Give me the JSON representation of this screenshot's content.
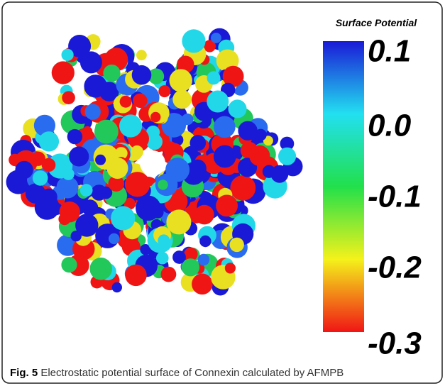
{
  "figure": {
    "colorbar": {
      "title": "Surface Potential",
      "labels": [
        "0.1",
        "0.0",
        "-0.1",
        "-0.2",
        "-0.3"
      ]
    },
    "caption": {
      "label": "Fig. 5",
      "text": "Electrostatic potential surface of Connexin calculated by AFMPB"
    }
  }
}
